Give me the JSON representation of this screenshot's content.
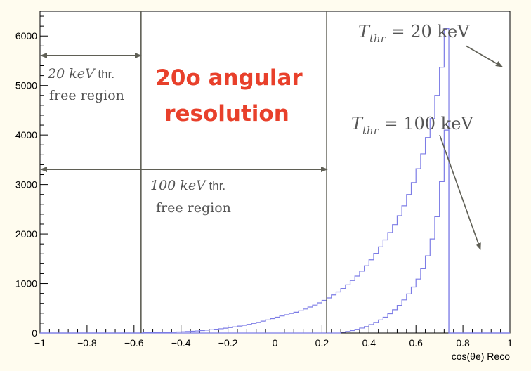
{
  "chart_data": {
    "type": "line",
    "xlabel": "cos(θe) Reco",
    "xlim": [
      -1,
      1
    ],
    "ylim": [
      0,
      6500
    ],
    "x_ticks": [
      "−1",
      "−0.8",
      "−0.6",
      "−0.4",
      "−0.2",
      "0",
      "0.2",
      "0.4",
      "0.6",
      "0.8",
      "1"
    ],
    "y_ticks": [
      "0",
      "1000",
      "2000",
      "3000",
      "4000",
      "5000",
      "6000"
    ],
    "grid": false,
    "bin_edges_start": -1.0,
    "bin_width": 0.02,
    "series": [
      {
        "name": "Tthr = 20 keV",
        "color": "#7c7ce6",
        "values": [
          0,
          0,
          0,
          0,
          0,
          0,
          0,
          0,
          0,
          0,
          0,
          0,
          0,
          0,
          0,
          0,
          0,
          0,
          0,
          0,
          0,
          0,
          5,
          5,
          8,
          10,
          12,
          15,
          18,
          22,
          25,
          30,
          36,
          42,
          50,
          58,
          66,
          76,
          86,
          98,
          110,
          125,
          140,
          155,
          175,
          195,
          215,
          240,
          265,
          290,
          320,
          345,
          370,
          395,
          420,
          450,
          485,
          525,
          565,
          610,
          660,
          710,
          770,
          830,
          900,
          975,
          1060,
          1150,
          1250,
          1360,
          1480,
          1610,
          1740,
          1880,
          2030,
          2190,
          2370,
          2570,
          2800,
          3040,
          3320,
          3620,
          3950,
          4330,
          4800,
          5370,
          6150,
          0,
          0,
          0,
          0,
          0,
          0,
          0,
          0,
          0,
          0,
          0,
          0,
          0
        ]
      },
      {
        "name": "Tthr = 100 keV",
        "color": "#7c7ce6",
        "values": [
          0,
          0,
          0,
          0,
          0,
          0,
          0,
          0,
          0,
          0,
          0,
          0,
          0,
          0,
          0,
          0,
          0,
          0,
          0,
          0,
          0,
          0,
          0,
          0,
          0,
          0,
          0,
          0,
          0,
          0,
          0,
          0,
          0,
          0,
          0,
          0,
          0,
          0,
          0,
          0,
          0,
          0,
          0,
          0,
          0,
          0,
          0,
          0,
          0,
          0,
          0,
          0,
          0,
          0,
          0,
          0,
          0,
          0,
          0,
          0,
          0,
          0,
          0,
          0,
          15,
          30,
          50,
          75,
          100,
          130,
          170,
          215,
          265,
          320,
          390,
          470,
          560,
          670,
          790,
          930,
          1090,
          1300,
          1560,
          1900,
          2350,
          3060,
          4100,
          0,
          0,
          0,
          0,
          0,
          0,
          0,
          0,
          0,
          0,
          0,
          0,
          0
        ]
      }
    ],
    "vlines": [
      -0.57,
      0.22
    ],
    "annotations": {
      "label_20kev_formula": {
        "T": "T",
        "sub": "thr",
        "rest": " = 20 keV"
      },
      "label_100kev_formula": {
        "T": "T",
        "sub": "thr",
        "rest": " = 100 keV"
      },
      "region_20kev_line1_italic": "20 keV",
      "region_20kev_line1_rest": " thr.",
      "region_20kev_line2": "free region",
      "region_100kev_line1_italic": "100 keV",
      "region_100kev_line1_rest": " thr.",
      "region_100kev_line2": "free region",
      "title_line1": "20o angular",
      "title_line2": "resolution",
      "title_color": "#e8402b",
      "annotation_color": "#5f5f55"
    }
  }
}
